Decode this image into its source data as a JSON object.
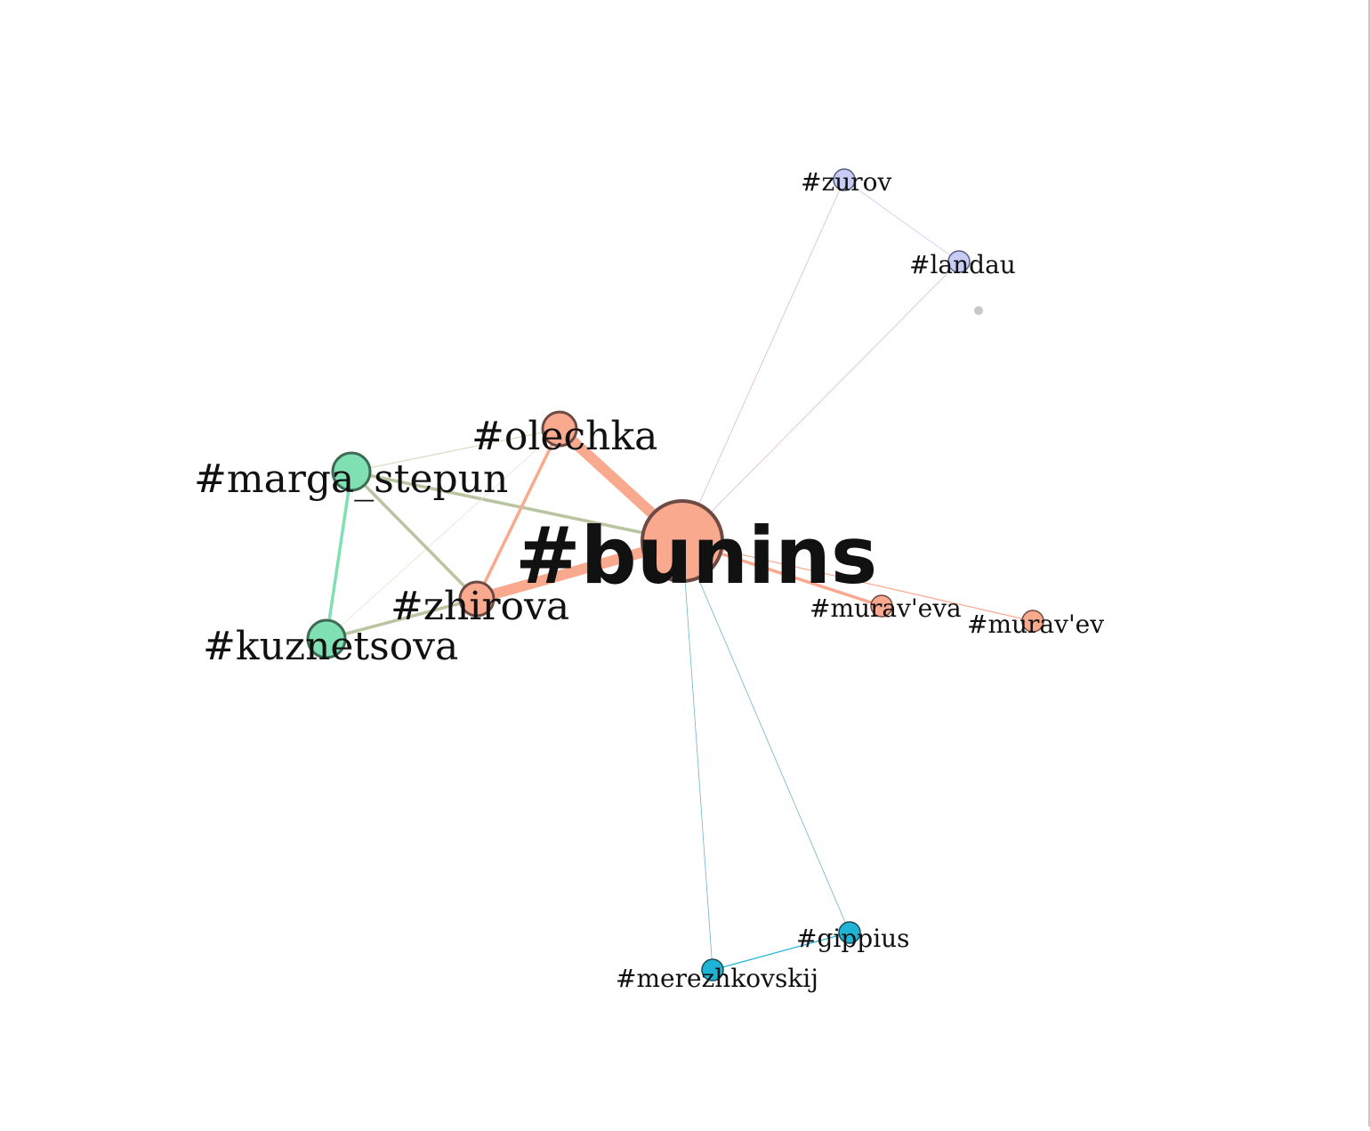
{
  "graph": {
    "nodes": [
      {
        "id": "bunins",
        "label": "#bunins",
        "color": "#f9a98e",
        "size": "xl"
      },
      {
        "id": "olechka",
        "label": "#olechka",
        "color": "#f9a98e",
        "size": "md"
      },
      {
        "id": "zhirova",
        "label": "#zhirova",
        "color": "#f9a98e",
        "size": "md"
      },
      {
        "id": "marga_stepun",
        "label": "#marga_stepun",
        "color": "#7fe0b4",
        "size": "lg"
      },
      {
        "id": "kuznetsova",
        "label": "#kuznetsova",
        "color": "#7fe0b4",
        "size": "lg"
      },
      {
        "id": "murav_eva",
        "label": "#murav'eva",
        "color": "#f9a98e",
        "size": "sm"
      },
      {
        "id": "murav_ev",
        "label": "#murav'ev",
        "color": "#f9a98e",
        "size": "sm"
      },
      {
        "id": "zurov",
        "label": "#zurov",
        "color": "#c7ccf5",
        "size": "sm"
      },
      {
        "id": "landau",
        "label": "#landau",
        "color": "#c7ccf5",
        "size": "sm"
      },
      {
        "id": "gippius",
        "label": "#gippius",
        "color": "#1fb4d6",
        "size": "sm"
      },
      {
        "id": "merezhkovskij",
        "label": "#merezhkovskij",
        "color": "#1fb4d6",
        "size": "sm"
      },
      {
        "id": "isolated",
        "label": "",
        "color": "#c8c8c8",
        "size": "dot"
      }
    ],
    "edges": [
      {
        "source": "bunins",
        "target": "olechka",
        "color": "#f9a98e",
        "weight": "heavy"
      },
      {
        "source": "bunins",
        "target": "zhirova",
        "color": "#f9a98e",
        "weight": "heavy"
      },
      {
        "source": "bunins",
        "target": "murav_eva",
        "color": "#f9a98e",
        "weight": "medium"
      },
      {
        "source": "bunins",
        "target": "murav_ev",
        "color": "#f9a98e",
        "weight": "thin"
      },
      {
        "source": "bunins",
        "target": "marga_stepun",
        "color": "#b9c4a0",
        "weight": "medium"
      },
      {
        "source": "bunins",
        "target": "zurov",
        "color": "#dcb8d0",
        "weight": "hair"
      },
      {
        "source": "bunins",
        "target": "landau",
        "color": "#dcb8d0",
        "weight": "hair"
      },
      {
        "source": "bunins",
        "target": "gippius",
        "color": "#6fb4c8",
        "weight": "hair"
      },
      {
        "source": "bunins",
        "target": "merezhkovskij",
        "color": "#6fb4c8",
        "weight": "hair"
      },
      {
        "source": "olechka",
        "target": "zhirova",
        "color": "#f9a98e",
        "weight": "medium"
      },
      {
        "source": "olechka",
        "target": "marga_stepun",
        "color": "#d5dcc0",
        "weight": "thin"
      },
      {
        "source": "olechka",
        "target": "kuznetsova",
        "color": "#e6e0d6",
        "weight": "hair"
      },
      {
        "source": "marga_stepun",
        "target": "zhirova",
        "color": "#b9c4a0",
        "weight": "medium"
      },
      {
        "source": "marga_stepun",
        "target": "kuznetsova",
        "color": "#7fe0b4",
        "weight": "medium"
      },
      {
        "source": "zhirova",
        "target": "kuznetsova",
        "color": "#b9c4a0",
        "weight": "medium"
      },
      {
        "source": "zurov",
        "target": "landau",
        "color": "#c7ccf5",
        "weight": "hair"
      },
      {
        "source": "gippius",
        "target": "merezhkovskij",
        "color": "#1fb4d6",
        "weight": "thin"
      }
    ]
  }
}
